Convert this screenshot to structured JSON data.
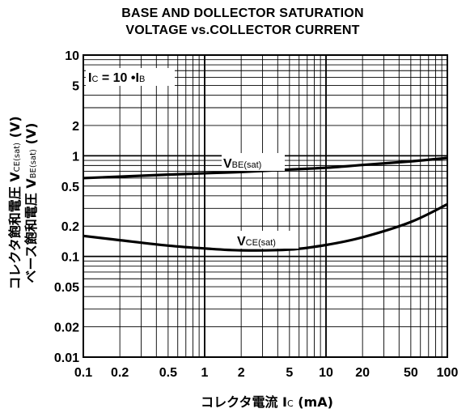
{
  "chart_data": {
    "type": "line",
    "title": "BASE AND DOLLECTOR SATURATION",
    "subtitle": "VOLTAGE vs.COLLECTOR CURRENT",
    "xlabel": {
      "jp": "コレクタ電流",
      "sym": "I",
      "sub": "C",
      "unit": "(mA)"
    },
    "ylabel": {
      "line1": {
        "jp": "コレクタ飽和電圧",
        "sym": "V",
        "sub": "CE(sat)",
        "unit": "(V)"
      },
      "line2": {
        "jp": "ベース飽和電圧",
        "sym": "V",
        "sub": "BE(sat)",
        "unit": "(V)"
      }
    },
    "x_scale": "log",
    "y_scale": "log",
    "xlim": [
      0.1,
      100
    ],
    "ylim": [
      0.01,
      10
    ],
    "x_ticks": [
      0.1,
      0.2,
      0.5,
      1,
      2,
      5,
      10,
      20,
      50,
      100
    ],
    "x_tick_labels": [
      "0.1",
      "0.2",
      "0.5",
      "1",
      "2",
      "5",
      "10",
      "20",
      "50",
      "100"
    ],
    "y_ticks": [
      0.01,
      0.02,
      0.05,
      0.1,
      0.2,
      0.5,
      1,
      2,
      5,
      10
    ],
    "y_tick_labels": [
      "0.01",
      "0.02",
      "0.05",
      "0.1",
      "0.2",
      "0.5",
      "1",
      "2",
      "5",
      "10"
    ],
    "grid": true,
    "condition": {
      "sym1": "I",
      "sub1": "C",
      "mid": " = 10 •",
      "sym2": "I",
      "sub2": "B"
    },
    "series": [
      {
        "name": "VBE(sat)",
        "label_main": "V",
        "label_sub": "BE(sat)",
        "x": [
          0.1,
          0.2,
          0.5,
          1,
          2,
          5,
          10,
          20,
          50,
          100
        ],
        "y": [
          0.6,
          0.62,
          0.65,
          0.67,
          0.69,
          0.73,
          0.76,
          0.81,
          0.88,
          0.95
        ]
      },
      {
        "name": "VCE(sat)",
        "label_main": "V",
        "label_sub": "CE(sat)",
        "x": [
          0.1,
          0.2,
          0.5,
          1,
          2,
          5,
          10,
          20,
          50,
          100
        ],
        "y": [
          0.16,
          0.145,
          0.128,
          0.12,
          0.115,
          0.117,
          0.13,
          0.155,
          0.22,
          0.33
        ]
      }
    ]
  }
}
